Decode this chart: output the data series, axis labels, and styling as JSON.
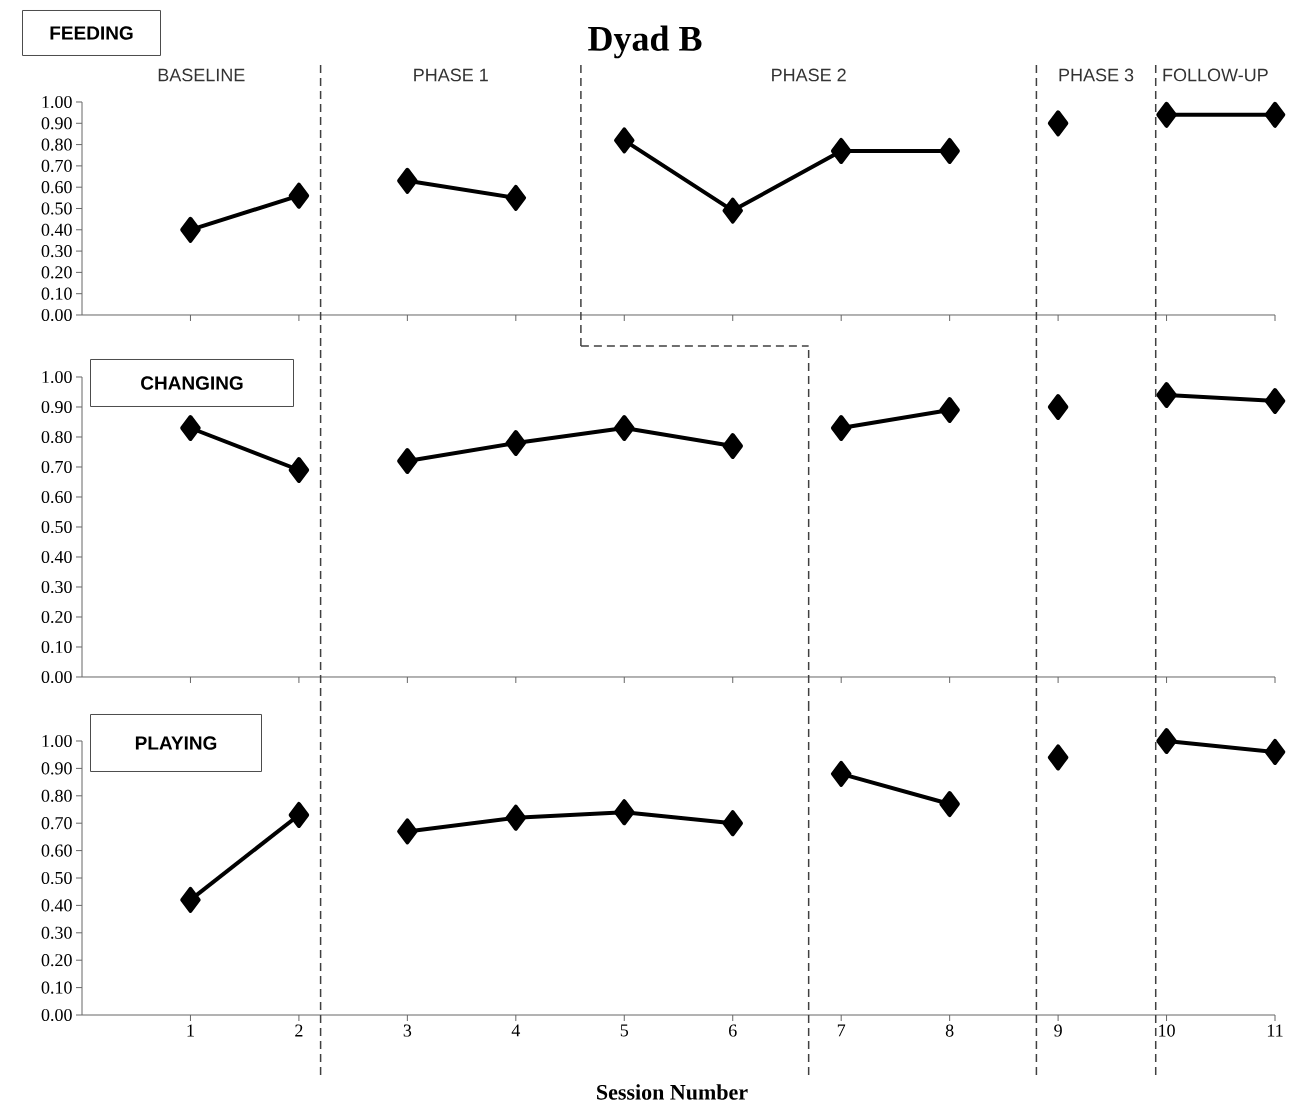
{
  "chart_data": [
    {
      "type": "line",
      "title": "Dyad B",
      "subtitle": "FEEDING",
      "annotations": [
        "BASELINE",
        "PHASE 1",
        "PHASE 2",
        "PHASE 3",
        "FOLLOW-UP"
      ],
      "xlim": [
        0,
        11
      ],
      "xticks": [
        1,
        2,
        3,
        4,
        5,
        6,
        7,
        8,
        9,
        10,
        11
      ],
      "ylim": [
        0,
        1
      ],
      "yticks": [
        {
          "value": 0,
          "label": "0.00"
        },
        {
          "value": 0.1,
          "label": "0.10"
        },
        {
          "value": 0.2,
          "label": "0.20"
        },
        {
          "value": 0.3,
          "label": "0.30"
        },
        {
          "value": 0.4,
          "label": "0.40"
        },
        {
          "value": 0.5,
          "label": "0.50"
        },
        {
          "value": 0.6,
          "label": "0.60"
        },
        {
          "value": 0.7,
          "label": "0.70"
        },
        {
          "value": 0.8,
          "label": "0.80"
        },
        {
          "value": 0.9,
          "label": "0.90"
        },
        {
          "value": 1,
          "label": "1.00"
        }
      ],
      "tick_labels": "y",
      "marker": "diamond",
      "line_style": "solid",
      "ref_lines": [
        {
          "axis": "x",
          "value": 2.2,
          "color": "#404040",
          "line_style": "dashed"
        },
        {
          "axis": "x",
          "value": 4.6,
          "color": "#404040",
          "line_style": "dashed"
        },
        {
          "axis": "x",
          "value": 8.8,
          "color": "#404040",
          "line_style": "dashed"
        },
        {
          "axis": "x",
          "value": 9.9,
          "color": "#404040",
          "line_style": "dashed"
        }
      ],
      "series": [
        {
          "color": "#000000",
          "x": [
            1,
            2
          ],
          "values": [
            0.4,
            0.56
          ]
        },
        {
          "color": "#000000",
          "x": [
            3,
            4
          ],
          "values": [
            0.63,
            0.55
          ]
        },
        {
          "color": "#000000",
          "x": [
            5,
            6,
            7,
            8
          ],
          "values": [
            0.82,
            0.49,
            0.77,
            0.77
          ]
        },
        {
          "color": "#000000",
          "x": [
            9
          ],
          "values": [
            0.9
          ]
        },
        {
          "color": "#000000",
          "x": [
            10,
            11
          ],
          "values": [
            0.94,
            0.94
          ]
        }
      ]
    },
    {
      "type": "line",
      "subtitle": "CHANGING",
      "xlim": [
        0,
        11
      ],
      "xticks": [
        1,
        2,
        3,
        4,
        5,
        6,
        7,
        8,
        9,
        10,
        11
      ],
      "ylim": [
        0,
        1
      ],
      "yticks": [
        {
          "value": 0,
          "label": "0.00"
        },
        {
          "value": 0.1,
          "label": "0.10"
        },
        {
          "value": 0.2,
          "label": "0.20"
        },
        {
          "value": 0.3,
          "label": "0.30"
        },
        {
          "value": 0.4,
          "label": "0.40"
        },
        {
          "value": 0.5,
          "label": "0.50"
        },
        {
          "value": 0.6,
          "label": "0.60"
        },
        {
          "value": 0.7,
          "label": "0.70"
        },
        {
          "value": 0.8,
          "label": "0.80"
        },
        {
          "value": 0.9,
          "label": "0.90"
        },
        {
          "value": 1,
          "label": "1.00"
        }
      ],
      "tick_labels": "y",
      "marker": "diamond",
      "line_style": "solid",
      "ref_lines": [
        {
          "axis": "x",
          "value": 2.2,
          "color": "#404040",
          "line_style": "dashed"
        },
        {
          "axis": "x",
          "value": 6.7,
          "color": "#404040",
          "line_style": "dashed"
        },
        {
          "axis": "x",
          "value": 8.8,
          "color": "#404040",
          "line_style": "dashed"
        },
        {
          "axis": "x",
          "value": 9.9,
          "color": "#404040",
          "line_style": "dashed"
        }
      ],
      "series": [
        {
          "color": "#000000",
          "x": [
            1,
            2
          ],
          "values": [
            0.83,
            0.69
          ]
        },
        {
          "color": "#000000",
          "x": [
            3,
            4,
            5,
            6
          ],
          "values": [
            0.72,
            0.78,
            0.83,
            0.77
          ]
        },
        {
          "color": "#000000",
          "x": [
            7,
            8
          ],
          "values": [
            0.83,
            0.89
          ]
        },
        {
          "color": "#000000",
          "x": [
            9
          ],
          "values": [
            0.9
          ]
        },
        {
          "color": "#000000",
          "x": [
            10,
            11
          ],
          "values": [
            0.94,
            0.92
          ]
        }
      ]
    },
    {
      "type": "line",
      "subtitle": "PLAYING",
      "xlabel": "Session Number",
      "xlim": [
        0,
        11
      ],
      "xticks": [
        1,
        2,
        3,
        4,
        5,
        6,
        7,
        8,
        9,
        10,
        11
      ],
      "ylim": [
        0,
        1
      ],
      "yticks": [
        {
          "value": 0,
          "label": "0.00"
        },
        {
          "value": 0.1,
          "label": "0.10"
        },
        {
          "value": 0.2,
          "label": "0.20"
        },
        {
          "value": 0.3,
          "label": "0.30"
        },
        {
          "value": 0.4,
          "label": "0.40"
        },
        {
          "value": 0.5,
          "label": "0.50"
        },
        {
          "value": 0.6,
          "label": "0.60"
        },
        {
          "value": 0.7,
          "label": "0.70"
        },
        {
          "value": 0.8,
          "label": "0.80"
        },
        {
          "value": 0.9,
          "label": "0.90"
        },
        {
          "value": 1,
          "label": "1.00"
        }
      ],
      "marker": "diamond",
      "line_style": "solid",
      "ref_lines": [
        {
          "axis": "x",
          "value": 2.2,
          "color": "#404040",
          "line_style": "dashed"
        },
        {
          "axis": "x",
          "value": 6.7,
          "color": "#404040",
          "line_style": "dashed"
        },
        {
          "axis": "x",
          "value": 8.8,
          "color": "#404040",
          "line_style": "dashed"
        },
        {
          "axis": "x",
          "value": 9.9,
          "color": "#404040",
          "line_style": "dashed"
        }
      ],
      "series": [
        {
          "color": "#000000",
          "x": [
            1,
            2
          ],
          "values": [
            0.42,
            0.73
          ]
        },
        {
          "color": "#000000",
          "x": [
            3,
            4,
            5,
            6
          ],
          "values": [
            0.67,
            0.72,
            0.74,
            0.7
          ]
        },
        {
          "color": "#000000",
          "x": [
            7,
            8
          ],
          "values": [
            0.88,
            0.77
          ]
        },
        {
          "color": "#000000",
          "x": [
            9
          ],
          "values": [
            0.94
          ]
        },
        {
          "color": "#000000",
          "x": [
            10,
            11
          ],
          "values": [
            1.0,
            0.96
          ]
        }
      ]
    }
  ]
}
